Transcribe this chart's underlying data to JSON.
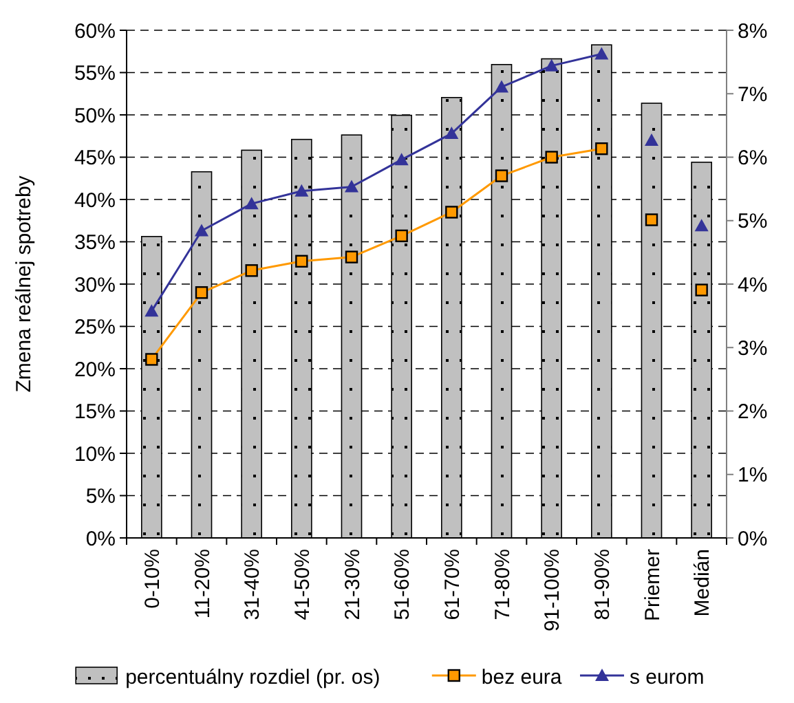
{
  "chart_data": {
    "type": "bar",
    "ylabel": "Zmena reálnej spotreby",
    "categories": [
      "0-10%",
      "11-20%",
      "31-40%",
      "41-50%",
      "21-30%",
      "51-60%",
      "61-70%",
      "71-80%",
      "91-100%",
      "81-90%",
      "Priemer",
      "Medián"
    ],
    "series": [
      {
        "name": "percentuálny rozdiel (pr. os)",
        "axis": "y2",
        "color": "#c0c0c0",
        "values": [
          4.75,
          5.77,
          6.11,
          6.28,
          6.35,
          6.66,
          6.94,
          7.46,
          7.55,
          7.77,
          6.85,
          5.92
        ]
      },
      {
        "name": "bez eura",
        "type": "line",
        "marker": "square",
        "color": "#ff9900",
        "values": [
          21.1,
          29.0,
          31.6,
          32.7,
          33.2,
          35.7,
          38.5,
          42.8,
          45.0,
          46.0,
          null,
          null
        ]
      },
      {
        "name": "s eurom",
        "type": "line",
        "marker": "triangle",
        "color": "#333399",
        "values": [
          26.8,
          36.3,
          39.5,
          41.0,
          41.5,
          44.7,
          47.8,
          53.3,
          55.8,
          57.2,
          null,
          null
        ]
      },
      {
        "type": "scatter",
        "marker": "square",
        "color": "#ff9900",
        "x": [
          "Priemer",
          "Medián"
        ],
        "values": [
          37.6,
          29.3
        ]
      },
      {
        "type": "scatter",
        "marker": "triangle",
        "color": "#333399",
        "x": [
          "Priemer",
          "Medián"
        ],
        "values": [
          47.0,
          36.9
        ]
      }
    ],
    "ylim": [
      0,
      60
    ],
    "yticks": [
      {
        "value": 0,
        "label": "0%"
      },
      {
        "value": 5,
        "label": "5%"
      },
      {
        "value": 10,
        "label": "10%"
      },
      {
        "value": 15,
        "label": "15%"
      },
      {
        "value": 20,
        "label": "20%"
      },
      {
        "value": 25,
        "label": "25%"
      },
      {
        "value": 30,
        "label": "30%"
      },
      {
        "value": 35,
        "label": "35%"
      },
      {
        "value": 40,
        "label": "40%"
      },
      {
        "value": 45,
        "label": "45%"
      },
      {
        "value": 50,
        "label": "50%"
      },
      {
        "value": 55,
        "label": "55%"
      },
      {
        "value": 60,
        "label": "60%"
      }
    ],
    "y2lim": [
      0,
      8
    ],
    "y2ticks": [
      {
        "value": 0,
        "label": "0%"
      },
      {
        "value": 1,
        "label": "1%"
      },
      {
        "value": 2,
        "label": "2%"
      },
      {
        "value": 3,
        "label": "3%"
      },
      {
        "value": 4,
        "label": "4%"
      },
      {
        "value": 5,
        "label": "5%"
      },
      {
        "value": 6,
        "label": "6%"
      },
      {
        "value": 7,
        "label": "7%"
      },
      {
        "value": 8,
        "label": "8%"
      }
    ],
    "grid": "y",
    "legend": "bottom"
  }
}
